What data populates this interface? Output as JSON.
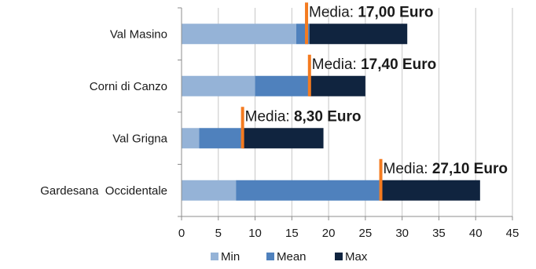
{
  "chart_data": {
    "type": "bar",
    "orientation": "horizontal",
    "stacked": true,
    "categories": [
      "Val Masino",
      "Corni di Canzo",
      "Val Grigna",
      "Gardesana  Occidentale"
    ],
    "series": [
      {
        "name": "Min",
        "color": "#95b3d7",
        "values": [
          15.6,
          10.0,
          2.4,
          7.4
        ]
      },
      {
        "name": "Mean",
        "color": "#4f81bd",
        "values": [
          1.8,
          7.4,
          5.9,
          19.7
        ]
      },
      {
        "name": "Max",
        "color": "#10243f",
        "values": [
          13.3,
          7.6,
          11.0,
          13.5
        ]
      }
    ],
    "means": [
      17.0,
      17.4,
      8.3,
      27.1
    ],
    "mean_marker_color": "#f47b20",
    "annotations": [
      {
        "prefix": "Media: ",
        "value": "17,00 Euro"
      },
      {
        "prefix": "Media: ",
        "value": "17,40 Euro"
      },
      {
        "prefix": "Media: ",
        "value": "8,30 Euro"
      },
      {
        "prefix": "Media: ",
        "value": "27,10 Euro"
      }
    ],
    "xlim": [
      0,
      45
    ],
    "xticks": [
      "0",
      "5",
      "10",
      "15",
      "20",
      "25",
      "30",
      "35",
      "40",
      "45"
    ],
    "grid": true,
    "legend_position": "bottom",
    "title": "",
    "xlabel": "",
    "ylabel": ""
  }
}
